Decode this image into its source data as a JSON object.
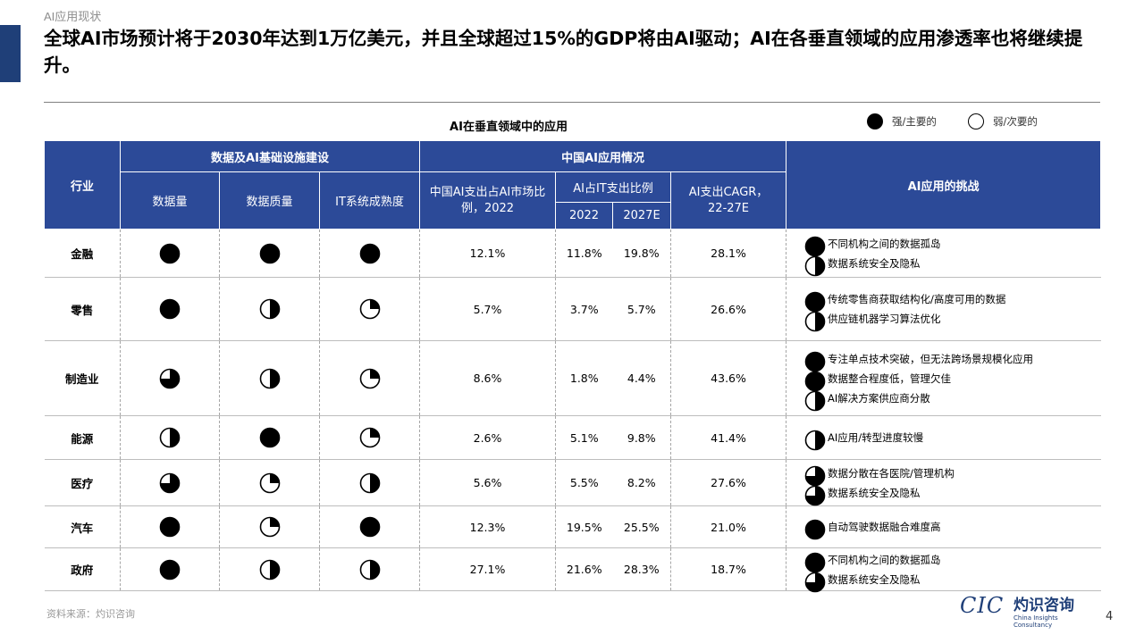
{
  "section_label": "AI应用现状",
  "title": "全球AI市场预计将于2030年达到1万亿美元，并且全球超过15%的GDP将由AI驱动；AI在各垂直领域的应用渗透率也将继续提升。",
  "caption": "AI在垂直领域中的应用",
  "legend": {
    "strong": "强/主要的",
    "weak": "弱/次要的"
  },
  "headers": {
    "industry": "行业",
    "infra_group": "数据及AI基础设施建设",
    "data_volume": "数据量",
    "data_quality": "数据质量",
    "it_maturity": "IT系统成熟度",
    "china_group": "中国AI应用情况",
    "ai_share_market": "中国AI支出占AI市场比例，2022",
    "ai_share_it": "AI占IT支出比例",
    "y2022": "2022",
    "y2027": "2027E",
    "cagr": "AI支出CAGR，22-27E",
    "challenges": "AI应用的挑战"
  },
  "rows": [
    {
      "industry": "金融",
      "volume": 1,
      "quality": 1,
      "maturity": 1,
      "market_share": "12.1%",
      "it2022": "11.8%",
      "it2027": "19.8%",
      "cagr": "28.1%",
      "challenges": [
        {
          "level": 1,
          "text": "不同机构之间的数据孤岛"
        },
        {
          "level": 0.5,
          "text": "数据系统安全及隐私"
        }
      ]
    },
    {
      "industry": "零售",
      "volume": 1,
      "quality": 0.5,
      "maturity": 0.25,
      "market_share": "5.7%",
      "it2022": "3.7%",
      "it2027": "5.7%",
      "cagr": "26.6%",
      "challenges": [
        {
          "level": 1,
          "text": "传统零售商获取结构化/高度可用的数据"
        },
        {
          "level": 0.5,
          "text": "供应链机器学习算法优化"
        }
      ]
    },
    {
      "industry": "制造业",
      "volume": 0.75,
      "quality": 0.5,
      "maturity": 0.25,
      "market_share": "8.6%",
      "it2022": "1.8%",
      "it2027": "4.4%",
      "cagr": "43.6%",
      "challenges": [
        {
          "level": 1,
          "text": "专注单点技术突破，但无法跨场景规模化应用"
        },
        {
          "level": 1,
          "text": "数据整合程度低，管理欠佳"
        },
        {
          "level": 0.5,
          "text": "AI解决方案供应商分散"
        }
      ]
    },
    {
      "industry": "能源",
      "volume": 0.5,
      "quality": 1,
      "maturity": 0.25,
      "market_share": "2.6%",
      "it2022": "5.1%",
      "it2027": "9.8%",
      "cagr": "41.4%",
      "challenges": [
        {
          "level": 0.5,
          "text": "AI应用/转型进度较慢"
        }
      ]
    },
    {
      "industry": "医疗",
      "volume": 0.75,
      "quality": 0.25,
      "maturity": 0.5,
      "market_share": "5.6%",
      "it2022": "5.5%",
      "it2027": "8.2%",
      "cagr": "27.6%",
      "challenges": [
        {
          "level": 0.75,
          "text": "数据分散在各医院/管理机构"
        },
        {
          "level": 0.75,
          "text": "数据系统安全及隐私"
        }
      ]
    },
    {
      "industry": "汽车",
      "volume": 1,
      "quality": 0.25,
      "maturity": 1,
      "market_share": "12.3%",
      "it2022": "19.5%",
      "it2027": "25.5%",
      "cagr": "21.0%",
      "challenges": [
        {
          "level": 1,
          "text": "自动驾驶数据融合难度高"
        }
      ]
    },
    {
      "industry": "政府",
      "volume": 1,
      "quality": 0.5,
      "maturity": 0.5,
      "market_share": "27.1%",
      "it2022": "21.6%",
      "it2027": "28.3%",
      "cagr": "18.7%",
      "challenges": [
        {
          "level": 1,
          "text": "不同机构之间的数据孤岛"
        },
        {
          "level": 0.75,
          "text": "数据系统安全及隐私"
        }
      ]
    }
  ],
  "source": "资料来源：灼识咨询",
  "logo": {
    "mark": "CIC",
    "name_cn": "灼识咨询",
    "name_en": "China Insights Consultancy"
  },
  "page_number": "4"
}
